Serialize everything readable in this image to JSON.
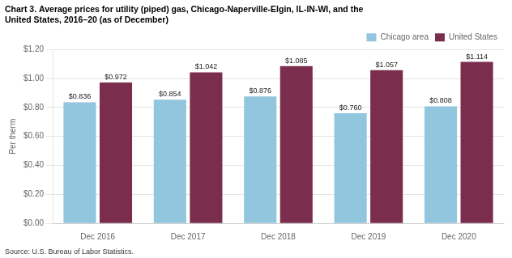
{
  "chart_data": {
    "type": "bar",
    "title": [
      "Chart 3. Average prices for utility (piped) gas, Chicago-Naperville-Elgin, IL-IN-WI, and the",
      "United States, 2016–20 (as of December)"
    ],
    "y_label": "Per therm",
    "annotations": [
      "Source: U.S. Bureau of Labor Statistics."
    ],
    "categories": [
      "Dec 2016",
      "Dec 2017",
      "Dec 2018",
      "Dec 2019",
      "Dec 2020"
    ],
    "series": [
      {
        "name": "Chicago area",
        "color": "#92C5DE",
        "values": [
          0.836,
          0.854,
          0.876,
          0.76,
          0.808
        ],
        "value_labels": [
          "$0.836",
          "$0.854",
          "$0.876",
          "$0.760",
          "$0.808"
        ]
      },
      {
        "name": "United States",
        "color": "#7B2D4E",
        "values": [
          0.972,
          1.042,
          1.085,
          1.057,
          1.114
        ],
        "value_labels": [
          "$0.972",
          "$1.042",
          "$1.085",
          "$1.057",
          "$1.114"
        ]
      }
    ],
    "ylim": [
      0.0,
      1.2
    ],
    "yticks": [
      {
        "value": 0.0,
        "label": "$0.00"
      },
      {
        "value": 0.2,
        "label": "$0.20"
      },
      {
        "value": 0.4,
        "label": "$0.40"
      },
      {
        "value": 0.6,
        "label": "$0.60"
      },
      {
        "value": 0.8,
        "label": "$0.80"
      },
      {
        "value": 1.0,
        "label": "$1.00"
      },
      {
        "value": 1.2,
        "label": "$1.20"
      }
    ],
    "grid": true,
    "legend": "upper right",
    "data_labels": true
  }
}
